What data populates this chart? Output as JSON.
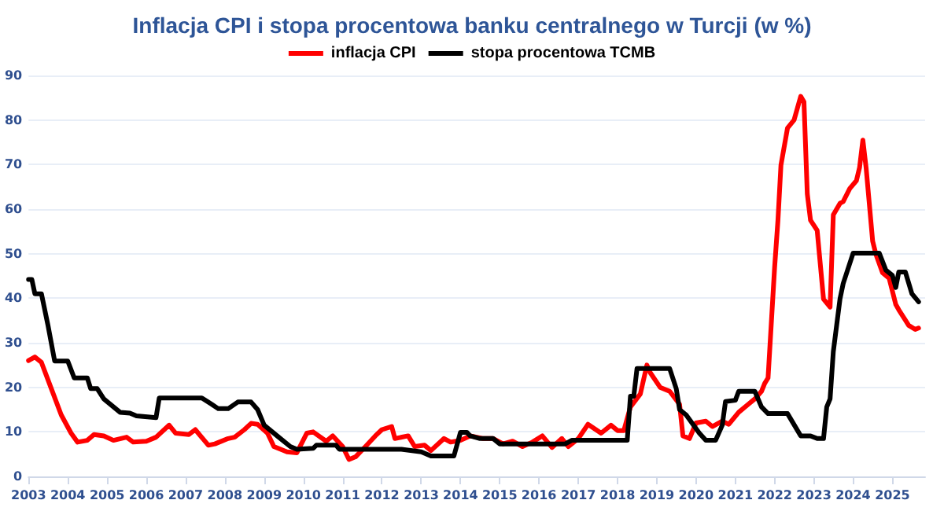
{
  "chart_data": {
    "type": "line",
    "title": "Inflacja CPI i stopa procentowa banku centralnego w Turcji (w %)",
    "legend": "top",
    "grid": "y",
    "marker": "none",
    "line_style": "solid",
    "xlim": [
      "2003-01",
      "2025-11"
    ],
    "xticks": [
      "2003",
      "2004",
      "2005",
      "2006",
      "2007",
      "2008",
      "2009",
      "2010",
      "2011",
      "2012",
      "2013",
      "2014",
      "2015",
      "2016",
      "2017",
      "2018",
      "2019",
      "2020",
      "2021",
      "2022",
      "2023",
      "2024",
      "2025"
    ],
    "ylim": [
      0,
      90
    ],
    "yticks": [
      0,
      10,
      20,
      30,
      40,
      50,
      60,
      70,
      80,
      90
    ],
    "series": [
      {
        "name": "inflacja CPI",
        "color": "#ff0000",
        "x": [
          "2003-01",
          "2003-03",
          "2003-05",
          "2003-08",
          "2003-11",
          "2004-02",
          "2004-04",
          "2004-07",
          "2004-09",
          "2004-12",
          "2005-03",
          "2005-07",
          "2005-09",
          "2006-01",
          "2006-04",
          "2006-08",
          "2006-10",
          "2007-02",
          "2007-04",
          "2007-08",
          "2007-10",
          "2008-02",
          "2008-04",
          "2008-07",
          "2008-09",
          "2008-11",
          "2009-02",
          "2009-04",
          "2009-08",
          "2009-11",
          "2010-02",
          "2010-04",
          "2010-08",
          "2010-10",
          "2011-01",
          "2011-03",
          "2011-05",
          "2011-08",
          "2011-11",
          "2012-01",
          "2012-04",
          "2012-05",
          "2012-09",
          "2012-11",
          "2013-02",
          "2013-04",
          "2013-08",
          "2013-10",
          "2014-01",
          "2014-04",
          "2014-08",
          "2014-11",
          "2015-02",
          "2015-05",
          "2015-08",
          "2015-11",
          "2016-02",
          "2016-05",
          "2016-08",
          "2016-10",
          "2017-01",
          "2017-04",
          "2017-08",
          "2017-11",
          "2018-01",
          "2018-03",
          "2018-05",
          "2018-08",
          "2018-10",
          "2018-11",
          "2019-02",
          "2019-05",
          "2019-08",
          "2019-09",
          "2019-11",
          "2020-01",
          "2020-04",
          "2020-06",
          "2020-09",
          "2020-11",
          "2021-02",
          "2021-05",
          "2021-07",
          "2021-09",
          "2021-10",
          "2021-11",
          "2022-01",
          "2022-02",
          "2022-03",
          "2022-05",
          "2022-07",
          "2022-09",
          "2022-10",
          "2022-11",
          "2022-12",
          "2023-02",
          "2023-04",
          "2023-06",
          "2023-07",
          "2023-09",
          "2023-10",
          "2023-12",
          "2024-02",
          "2024-03",
          "2024-04",
          "2024-05",
          "2024-07",
          "2024-08",
          "2024-10",
          "2024-12",
          "2025-02",
          "2025-03",
          "2025-05",
          "2025-06",
          "2025-08",
          "2025-09"
        ],
        "values": [
          26,
          26.8,
          25.6,
          19.7,
          13.8,
          9.7,
          7.7,
          8.1,
          9.4,
          9.1,
          8.1,
          8.8,
          7.7,
          7.9,
          8.8,
          11.5,
          9.7,
          9.4,
          10.5,
          7.0,
          7.3,
          8.5,
          8.8,
          10.5,
          11.9,
          11.7,
          9.7,
          6.7,
          5.5,
          5.3,
          9.7,
          10,
          7.9,
          9.1,
          6.7,
          3.8,
          4.4,
          6.7,
          9.1,
          10.5,
          11.2,
          8.5,
          9.1,
          6.7,
          7.0,
          5.8,
          8.5,
          7.7,
          8.1,
          9.1,
          8.5,
          8.5,
          7.3,
          7.9,
          6.7,
          7.7,
          9.1,
          6.5,
          8.5,
          6.7,
          8.5,
          11.7,
          9.7,
          11.5,
          10.3,
          10.3,
          15.6,
          18.5,
          25,
          23.3,
          20,
          19.1,
          16.2,
          9.1,
          8.5,
          12,
          12.4,
          11.2,
          12.4,
          11.7,
          14.4,
          16.2,
          17.4,
          19.1,
          20.9,
          22.1,
          46.9,
          57.5,
          69.9,
          78.2,
          80,
          85.3,
          84.1,
          63.4,
          57.5,
          55.2,
          39.8,
          38,
          58.7,
          61.3,
          61.7,
          64.6,
          66.4,
          69.3,
          75.5,
          69.3,
          52.8,
          49.8,
          45.7,
          44.5,
          38.6,
          37.4,
          35.1,
          33.9,
          33,
          33.3
        ]
      },
      {
        "name": "stopa procentowa TCMB",
        "color": "#000000",
        "x": [
          "2003-01",
          "2003-02",
          "2003-03",
          "2003-05",
          "2003-07",
          "2003-09",
          "2004-01",
          "2004-03",
          "2004-07",
          "2004-08",
          "2004-10",
          "2004-12",
          "2005-05",
          "2005-08",
          "2005-10",
          "2006-04",
          "2006-05",
          "2007-06",
          "2007-09",
          "2007-11",
          "2008-02",
          "2008-05",
          "2008-09",
          "2008-11",
          "2009-01",
          "2009-05",
          "2009-09",
          "2009-11",
          "2010-04",
          "2010-05",
          "2010-11",
          "2010-12",
          "2012-07",
          "2013-01",
          "2013-04",
          "2013-11",
          "2014-01",
          "2014-03",
          "2014-04",
          "2014-07",
          "2014-11",
          "2015-01",
          "2016-09",
          "2016-11",
          "2018-04",
          "2018-05",
          "2018-06",
          "2018-07",
          "2019-05",
          "2019-07",
          "2019-08",
          "2019-10",
          "2020-02",
          "2020-04",
          "2020-07",
          "2020-09",
          "2020-10",
          "2021-01",
          "2021-02",
          "2021-07",
          "2021-09",
          "2021-11",
          "2022-05",
          "2022-09",
          "2022-12",
          "2023-02",
          "2023-04",
          "2023-05",
          "2023-06",
          "2023-07",
          "2023-09",
          "2023-10",
          "2024-01",
          "2024-09",
          "2024-11",
          "2025-01",
          "2025-02",
          "2025-03",
          "2025-05",
          "2025-07",
          "2025-09"
        ],
        "values": [
          44.2,
          44.2,
          41,
          41,
          33.9,
          25.9,
          25.9,
          22.1,
          22.1,
          19.7,
          19.7,
          17.4,
          14.4,
          14.2,
          13.6,
          13.2,
          17.6,
          17.6,
          16.2,
          15.2,
          15.2,
          16.7,
          16.7,
          15,
          11.5,
          9.1,
          6.7,
          6.1,
          6.3,
          7.0,
          7.0,
          6.1,
          6.1,
          5.5,
          4.6,
          4.6,
          9.9,
          9.9,
          9.1,
          8.5,
          8.5,
          7.3,
          7.3,
          8.1,
          8.1,
          18,
          18,
          24.2,
          24.2,
          19.7,
          15,
          13.8,
          9.7,
          8.1,
          8.1,
          11.5,
          16.8,
          17.1,
          19.1,
          19.1,
          15.6,
          14.1,
          14.1,
          9.1,
          9.1,
          8.5,
          8.5,
          15.6,
          17.4,
          28,
          39.8,
          43.3,
          50.1,
          50.1,
          46.3,
          45.1,
          42.4,
          45.9,
          45.9,
          41,
          39.2
        ]
      }
    ]
  }
}
